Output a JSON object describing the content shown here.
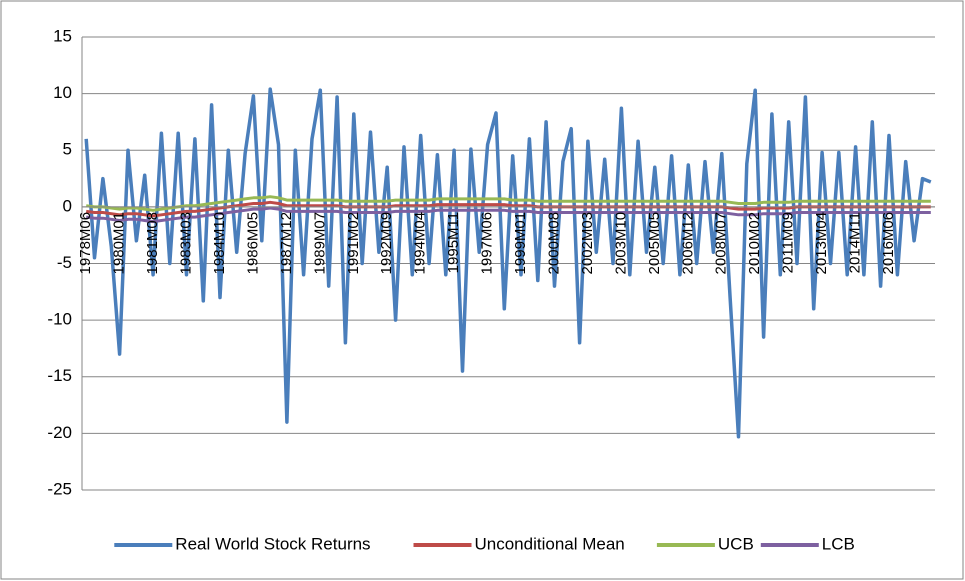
{
  "chart_data": {
    "type": "line",
    "categories": [
      "1978M06",
      null,
      null,
      null,
      "1980M01",
      null,
      null,
      null,
      "1981M08",
      null,
      null,
      null,
      "1983M03",
      null,
      null,
      null,
      "1984M10",
      null,
      null,
      null,
      "1986M05",
      null,
      null,
      null,
      "1987M12",
      null,
      null,
      null,
      "1989M07",
      null,
      null,
      null,
      "1991M02",
      null,
      null,
      null,
      "1992M09",
      null,
      null,
      null,
      "1994M04",
      null,
      null,
      null,
      "1995M11",
      null,
      null,
      null,
      "1997M06",
      null,
      null,
      null,
      "1999M01",
      null,
      null,
      null,
      "2000M08",
      null,
      null,
      null,
      "2002M03",
      null,
      null,
      null,
      "2003M10",
      null,
      null,
      null,
      "2005M05",
      null,
      null,
      null,
      "2006M12",
      null,
      null,
      null,
      "2008M07",
      null,
      null,
      null,
      "2010M02",
      null,
      null,
      null,
      "2011M09",
      null,
      null,
      null,
      "2013M04",
      null,
      null,
      null,
      "2014M11",
      null,
      null,
      null,
      "2016M06",
      null,
      null,
      null,
      null,
      null
    ],
    "series": [
      {
        "name": "Real World Stock Returns",
        "color": "#4a7ebb",
        "values": [
          6,
          -4.5,
          2.5,
          -3.5,
          -13,
          5,
          -3,
          2.8,
          -6,
          6.5,
          -5,
          6.5,
          -6,
          6,
          -8.3,
          9,
          -8,
          5,
          -4,
          4.7,
          9.8,
          -3,
          10.4,
          5.5,
          -19,
          5,
          -6,
          6,
          10.3,
          -7,
          9.7,
          -12,
          8.2,
          -5,
          6.6,
          -4,
          3.5,
          -10,
          5.3,
          -6,
          6.3,
          -5,
          4.6,
          -6,
          5,
          -14.5,
          5.1,
          -4,
          5.5,
          8.3,
          -9,
          4.5,
          -6,
          6,
          -6.5,
          7.5,
          -7,
          4,
          6.9,
          -12,
          5.8,
          -4,
          4.2,
          -5,
          8.7,
          -6,
          5.8,
          -4,
          3.5,
          -5,
          4.5,
          -6,
          3.7,
          -5,
          4,
          -4,
          4.7,
          -8,
          -20.3,
          3.8,
          10.3,
          -11.5,
          8.2,
          -6,
          7.5,
          -5,
          9.7,
          -9,
          4.8,
          -5,
          4.8,
          -6,
          5.3,
          -6,
          7.5,
          -7,
          6.3,
          -6,
          4,
          -3,
          2.5,
          2.2
        ]
      },
      {
        "name": "Unconditional Mean",
        "color": "#be4b48",
        "values": [
          -0.4,
          -0.5,
          -0.5,
          -0.6,
          -0.7,
          -0.6,
          -0.6,
          -0.7,
          -0.8,
          -0.7,
          -0.6,
          -0.5,
          -0.4,
          -0.4,
          -0.3,
          -0.2,
          -0.1,
          0,
          0.1,
          0.2,
          0.3,
          0.3,
          0.4,
          0.3,
          0.1,
          0.1,
          0.1,
          0.1,
          0.1,
          0.1,
          0.1,
          0,
          0,
          0,
          0,
          0,
          0,
          0.1,
          0.1,
          0.1,
          0.1,
          0.1,
          0.2,
          0.2,
          0.2,
          0.2,
          0.2,
          0.2,
          0.2,
          0.2,
          0.2,
          0.1,
          0.1,
          0.1,
          0,
          0,
          0,
          0,
          0,
          0,
          0,
          0,
          0,
          0,
          0,
          0,
          0,
          0,
          0,
          0,
          0,
          0,
          0,
          0,
          0,
          0,
          0,
          -0.1,
          -0.2,
          -0.2,
          -0.2,
          -0.1,
          -0.1,
          -0.1,
          -0.1,
          0,
          0,
          0,
          0,
          0,
          0,
          0,
          0,
          0,
          0,
          0,
          0,
          0,
          0,
          0,
          0,
          0
        ]
      },
      {
        "name": "UCB",
        "color": "#98b954",
        "values": [
          0.1,
          0,
          0,
          -0.1,
          -0.2,
          -0.1,
          -0.1,
          -0.2,
          -0.3,
          -0.2,
          -0.1,
          0,
          0.1,
          0.1,
          0.2,
          0.3,
          0.4,
          0.5,
          0.6,
          0.7,
          0.8,
          0.8,
          0.9,
          0.8,
          0.6,
          0.6,
          0.6,
          0.6,
          0.6,
          0.6,
          0.6,
          0.5,
          0.5,
          0.5,
          0.5,
          0.5,
          0.5,
          0.6,
          0.6,
          0.6,
          0.6,
          0.6,
          0.7,
          0.7,
          0.7,
          0.7,
          0.7,
          0.7,
          0.7,
          0.7,
          0.7,
          0.6,
          0.6,
          0.6,
          0.5,
          0.5,
          0.5,
          0.5,
          0.5,
          0.5,
          0.5,
          0.5,
          0.5,
          0.5,
          0.5,
          0.5,
          0.5,
          0.5,
          0.5,
          0.5,
          0.5,
          0.5,
          0.5,
          0.5,
          0.5,
          0.5,
          0.5,
          0.4,
          0.3,
          0.3,
          0.3,
          0.4,
          0.4,
          0.4,
          0.4,
          0.5,
          0.5,
          0.5,
          0.5,
          0.5,
          0.5,
          0.5,
          0.5,
          0.5,
          0.5,
          0.5,
          0.5,
          0.5,
          0.5,
          0.5,
          0.5,
          0.5
        ]
      },
      {
        "name": "LCB",
        "color": "#7d60a0",
        "values": [
          -0.9,
          -1,
          -1,
          -1.1,
          -1.2,
          -1.1,
          -1.1,
          -1.2,
          -1.3,
          -1.2,
          -1.1,
          -1,
          -0.9,
          -0.9,
          -0.8,
          -0.7,
          -0.6,
          -0.5,
          -0.4,
          -0.3,
          -0.2,
          -0.2,
          -0.1,
          -0.2,
          -0.4,
          -0.4,
          -0.4,
          -0.4,
          -0.4,
          -0.4,
          -0.4,
          -0.5,
          -0.5,
          -0.5,
          -0.5,
          -0.5,
          -0.5,
          -0.4,
          -0.4,
          -0.4,
          -0.4,
          -0.4,
          -0.3,
          -0.3,
          -0.3,
          -0.3,
          -0.3,
          -0.3,
          -0.3,
          -0.3,
          -0.3,
          -0.4,
          -0.4,
          -0.4,
          -0.5,
          -0.5,
          -0.5,
          -0.5,
          -0.5,
          -0.5,
          -0.5,
          -0.5,
          -0.5,
          -0.5,
          -0.5,
          -0.5,
          -0.5,
          -0.5,
          -0.5,
          -0.5,
          -0.5,
          -0.5,
          -0.5,
          -0.5,
          -0.5,
          -0.5,
          -0.5,
          -0.6,
          -0.7,
          -0.7,
          -0.7,
          -0.6,
          -0.6,
          -0.6,
          -0.6,
          -0.5,
          -0.5,
          -0.5,
          -0.5,
          -0.5,
          -0.5,
          -0.5,
          -0.5,
          -0.5,
          -0.5,
          -0.5,
          -0.5,
          -0.5,
          -0.5,
          -0.5,
          -0.5,
          -0.5
        ]
      }
    ],
    "ylim": [
      -25,
      15
    ],
    "yticks": [
      -25,
      -20,
      -15,
      -10,
      -5,
      0,
      5,
      10,
      15
    ],
    "grid": true,
    "legend": "bottom"
  }
}
